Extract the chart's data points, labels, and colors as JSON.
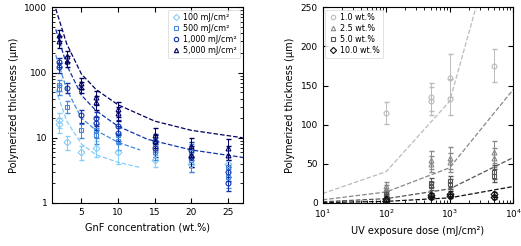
{
  "left": {
    "xlabel": "GnF concentration (wt.%)",
    "ylabel": "Polymerized thickness (μm)",
    "xlim": [
      1,
      27
    ],
    "ylim": [
      1,
      1000
    ],
    "xticks": [
      5,
      10,
      15,
      20,
      25
    ],
    "colors": [
      "#87CEFA",
      "#4488DD",
      "#1133AA",
      "#000060"
    ],
    "markers": [
      "D",
      "s",
      "o",
      "^"
    ],
    "labels": [
      "100 mJ/cm²",
      "500 mJ/cm²",
      "1,000 mJ/cm²",
      "5,000 mJ/cm²"
    ],
    "exp": [
      {
        "x": [
          2,
          2,
          3,
          5,
          7,
          10,
          15,
          20,
          25
        ],
        "y": [
          16,
          19,
          8.5,
          6,
          7,
          6,
          4.5,
          4,
          4
        ],
        "yerr_lo": [
          4,
          5,
          2,
          1.5,
          2,
          2,
          1,
          1,
          1
        ],
        "yerr_hi": [
          4,
          5,
          2,
          1.5,
          2,
          2,
          1,
          1,
          1
        ]
      },
      {
        "x": [
          2,
          2,
          3,
          5,
          7,
          7,
          10,
          10,
          15,
          15,
          20,
          20,
          25,
          25
        ],
        "y": [
          55,
          65,
          30,
          13,
          11,
          13,
          9,
          11,
          6,
          8,
          4.5,
          6,
          2.5,
          3.5
        ],
        "yerr_lo": [
          10,
          12,
          6,
          3,
          3,
          3,
          2.5,
          3,
          1.5,
          2,
          1.5,
          2,
          0.8,
          1
        ],
        "yerr_hi": [
          10,
          12,
          6,
          3,
          3,
          3,
          2.5,
          3,
          1.5,
          2,
          1.5,
          2,
          0.8,
          1
        ]
      },
      {
        "x": [
          2,
          2,
          3,
          5,
          7,
          7,
          10,
          10,
          15,
          15,
          20,
          20,
          25,
          25
        ],
        "y": [
          120,
          145,
          58,
          22,
          17,
          20,
          12,
          15,
          7,
          9,
          5,
          6.5,
          2,
          3
        ],
        "yerr_lo": [
          20,
          25,
          10,
          5,
          4,
          5,
          3,
          4,
          2,
          2.5,
          1.5,
          2,
          0.5,
          0.8
        ],
        "yerr_hi": [
          20,
          25,
          10,
          5,
          4,
          5,
          3,
          4,
          2,
          2.5,
          1.5,
          2,
          0.5,
          0.8
        ]
      },
      {
        "x": [
          2,
          2,
          3,
          3,
          5,
          5,
          7,
          7,
          10,
          10,
          15,
          15,
          20,
          20,
          25,
          25
        ],
        "y": [
          300,
          380,
          150,
          180,
          60,
          70,
          35,
          42,
          24,
          28,
          9,
          11,
          5.5,
          7.5,
          5.5,
          7
        ],
        "yerr_lo": [
          60,
          70,
          28,
          35,
          12,
          14,
          8,
          10,
          6,
          7,
          2,
          3,
          2,
          2.5,
          2,
          2.5
        ],
        "yerr_hi": [
          60,
          70,
          28,
          35,
          12,
          14,
          8,
          10,
          6,
          7,
          2,
          3,
          2,
          2.5,
          2,
          2.5
        ]
      }
    ],
    "model": [
      {
        "x": [
          1.5,
          3,
          5,
          7,
          10,
          13
        ],
        "y": [
          55,
          18,
          8,
          5.5,
          4.2,
          3.5
        ]
      },
      {
        "x": [
          1.5,
          3,
          5,
          7,
          10,
          13
        ],
        "y": [
          185,
          55,
          20,
          13,
          8.5,
          6.5
        ]
      },
      {
        "x": [
          1.5,
          3,
          5,
          7,
          10,
          14,
          20,
          27
        ],
        "y": [
          460,
          130,
          45,
          26,
          15,
          9.5,
          6.5,
          5
        ]
      },
      {
        "x": [
          1.5,
          3,
          5,
          7,
          10,
          15,
          20,
          27
        ],
        "y": [
          950,
          275,
          95,
          55,
          32,
          18,
          13,
          10
        ]
      }
    ]
  },
  "right": {
    "xlabel": "UV exposure dose (mJ/cm²)",
    "ylabel": "Polymerized thickness (μm)",
    "xlim": [
      10,
      10000
    ],
    "ylim": [
      0,
      250
    ],
    "yticks": [
      0,
      50,
      100,
      150,
      200,
      250
    ],
    "colors": [
      "#BBBBBB",
      "#888888",
      "#555555",
      "#111111"
    ],
    "markers": [
      "o",
      "^",
      "s",
      "D"
    ],
    "labels": [
      "1.0 wt.%",
      "2.5 wt.%",
      "5.0 wt.%",
      "10.0 wt.%"
    ],
    "exp": [
      {
        "x": [
          100,
          500,
          500,
          1000,
          1000,
          5000
        ],
        "y": [
          115,
          130,
          135,
          133,
          160,
          175
        ],
        "yerr_lo": [
          14,
          18,
          18,
          20,
          25,
          20
        ],
        "yerr_hi": [
          14,
          18,
          18,
          25,
          30,
          22
        ]
      },
      {
        "x": [
          100,
          100,
          500,
          500,
          1000,
          1000,
          5000,
          5000
        ],
        "y": [
          18,
          22,
          50,
          55,
          52,
          58,
          58,
          65
        ],
        "yerr_lo": [
          5,
          5,
          10,
          12,
          12,
          14,
          12,
          14
        ],
        "yerr_hi": [
          5,
          5,
          10,
          12,
          12,
          14,
          12,
          14
        ]
      },
      {
        "x": [
          100,
          100,
          500,
          500,
          1000,
          1000,
          5000,
          5000
        ],
        "y": [
          8,
          12,
          22,
          26,
          24,
          28,
          35,
          40
        ],
        "yerr_lo": [
          3,
          3,
          5,
          6,
          6,
          7,
          8,
          9
        ],
        "yerr_hi": [
          3,
          3,
          5,
          6,
          6,
          7,
          8,
          9
        ]
      },
      {
        "x": [
          100,
          100,
          500,
          500,
          1000,
          1000,
          5000,
          5000
        ],
        "y": [
          3,
          5,
          7,
          10,
          9,
          12,
          8,
          11
        ],
        "yerr_lo": [
          1.5,
          2,
          2,
          3,
          2.5,
          3,
          2.5,
          3
        ],
        "yerr_hi": [
          1.5,
          2,
          2,
          3,
          2.5,
          3,
          2.5,
          3
        ]
      }
    ],
    "model": [
      {
        "x": [
          10,
          100,
          1000,
          10000
        ],
        "y": [
          12,
          40,
          130,
          420
        ]
      },
      {
        "x": [
          10,
          100,
          1000,
          10000
        ],
        "y": [
          4,
          14,
          45,
          145
        ]
      },
      {
        "x": [
          10,
          100,
          1000,
          10000
        ],
        "y": [
          1.5,
          5.5,
          18,
          58
        ]
      },
      {
        "x": [
          10,
          100,
          1000,
          10000
        ],
        "y": [
          0.5,
          2,
          6.5,
          21
        ]
      }
    ]
  }
}
